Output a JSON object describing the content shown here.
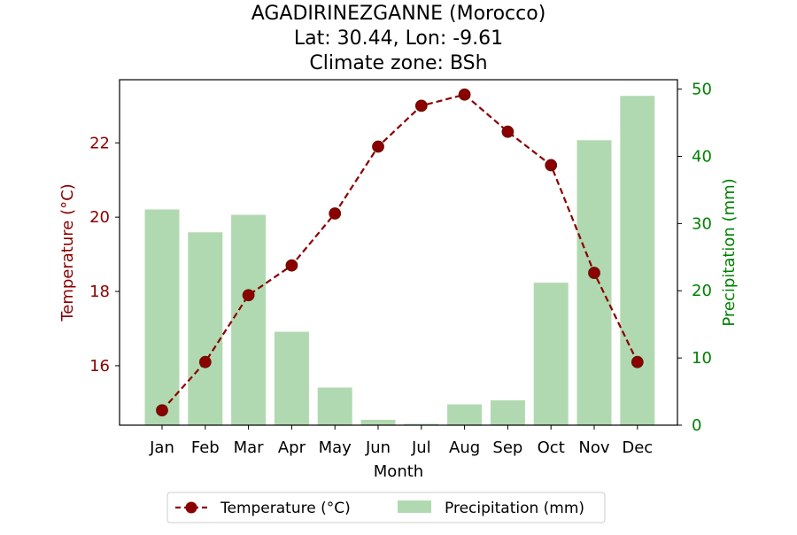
{
  "chart_data": {
    "type": "bar+line",
    "title_lines": [
      "AGADIRINEZGANNE (Morocco)",
      "Lat: 30.44, Lon: -9.61",
      "Climate zone: BSh"
    ],
    "xlabel": "Month",
    "ylabel_left": "Temperature (°C)",
    "ylabel_right": "Precipitation (mm)",
    "categories": [
      "Jan",
      "Feb",
      "Mar",
      "Apr",
      "May",
      "Jun",
      "Jul",
      "Aug",
      "Sep",
      "Oct",
      "Nov",
      "Dec"
    ],
    "series": [
      {
        "name": "Temperature (°C)",
        "type": "line",
        "axis": "left",
        "color": "#8b0000",
        "values": [
          14.8,
          16.1,
          17.9,
          18.7,
          20.1,
          21.9,
          23.0,
          23.3,
          22.3,
          21.4,
          18.5,
          16.1
        ]
      },
      {
        "name": "Precipitation (mm)",
        "type": "bar",
        "axis": "right",
        "color": "#b1d9b1",
        "values": [
          32.1,
          28.7,
          31.3,
          13.9,
          5.6,
          0.8,
          0.2,
          3.1,
          3.7,
          21.2,
          42.4,
          49.0
        ]
      }
    ],
    "y_left_ticks": [
      16,
      18,
      20,
      22
    ],
    "y_right_ticks": [
      0,
      10,
      20,
      30,
      40,
      50
    ],
    "ylim_left": [
      14.4,
      23.7
    ],
    "ylim_right": [
      0,
      51.4
    ],
    "legend_position": "bottom-center"
  }
}
